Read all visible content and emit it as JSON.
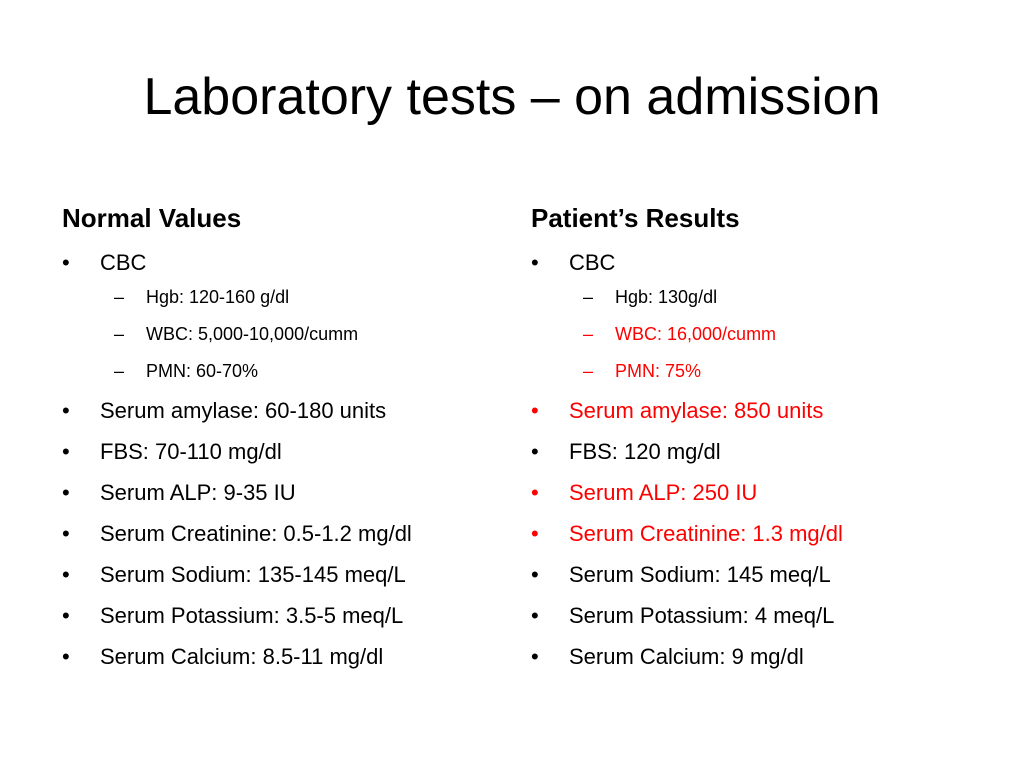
{
  "slide": {
    "title": "Laboratory tests – on admission"
  },
  "left_column": {
    "heading": "Normal Values",
    "cbc_label": "CBC",
    "cbc_items": [
      "Hgb: 120-160 g/dl",
      "WBC: 5,000-10,000/cumm",
      "PMN: 60-70%"
    ],
    "items": [
      "Serum amylase: 60-180 units",
      "FBS: 70-110 mg/dl",
      "Serum ALP: 9-35 IU",
      "Serum Creatinine: 0.5-1.2 mg/dl",
      "Serum Sodium: 135-145 meq/L",
      "Serum Potassium: 3.5-5 meq/L",
      "Serum Calcium: 8.5-11 mg/dl"
    ]
  },
  "right_column": {
    "heading": "Patient’s Results",
    "cbc_label": "CBC",
    "cbc_items": [
      "Hgb: 130g/dl",
      "WBC: 16,000/cumm",
      "PMN: 75%"
    ],
    "items": [
      "Serum amylase: 850 units",
      "FBS: 120 mg/dl",
      "Serum ALP: 250 IU",
      "Serum Creatinine: 1.3 mg/dl",
      "Serum Sodium: 145 meq/L",
      "Serum Potassium: 4 meq/L",
      "Serum Calcium: 9 mg/dl"
    ]
  },
  "markers": {
    "bullet": "•",
    "dash": "–"
  },
  "colors": {
    "text": "#000000",
    "abnormal": "#ff0000",
    "background": "#ffffff"
  }
}
